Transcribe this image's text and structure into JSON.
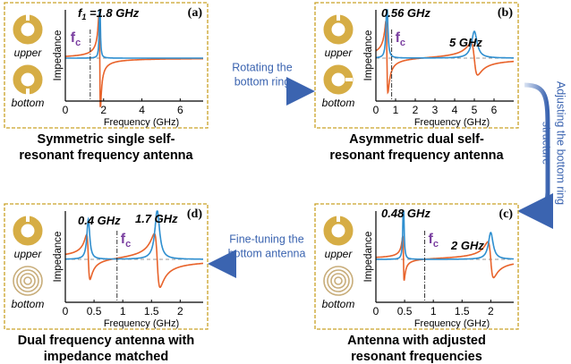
{
  "panels": [
    {
      "label": "(a)",
      "upper": "upper",
      "bottom": "bottom",
      "y_axis": "Impedance",
      "x_axis": "Frequency (GHz)",
      "xticks": [
        0,
        2,
        4,
        6
      ],
      "fc": {
        "main": "f",
        "sub": "c"
      },
      "annotations": [
        {
          "main": "f",
          "sub": "1",
          "rest": " =1.8 GHz"
        }
      ],
      "caption": [
        "Symmetric single self-",
        "resonant frequency antenna"
      ]
    },
    {
      "label": "(b)",
      "upper": "upper",
      "bottom": "bottom",
      "y_axis": "Impedance",
      "x_axis": "Frequency (GHz)",
      "xticks": [
        0,
        1,
        2,
        3,
        4,
        5,
        6
      ],
      "fc": {
        "main": "f",
        "sub": "c"
      },
      "annotations": [
        {
          "main": "0.56 GHz"
        },
        {
          "main": "5 GHz"
        }
      ],
      "caption": [
        "Asymmetric dual self-",
        "resonant frequency antenna"
      ]
    },
    {
      "label": "(c)",
      "upper": "upper",
      "bottom": "bottom",
      "y_axis": "Impedance",
      "x_axis": "Frequency (GHz)",
      "xticks": [
        0,
        0.5,
        1,
        1.5,
        2
      ],
      "fc": {
        "main": "f",
        "sub": "c"
      },
      "annotations": [
        {
          "main": "0.48 GHz"
        },
        {
          "main": "2 GHz"
        }
      ],
      "caption": [
        "Antenna with adjusted",
        "resonant frequencies"
      ]
    },
    {
      "label": "(d)",
      "upper": "upper",
      "bottom": "bottom",
      "y_axis": "Impedance",
      "x_axis": "Frequency (GHz)",
      "xticks": [
        0,
        0.5,
        1,
        1.5,
        2
      ],
      "fc": {
        "main": "f",
        "sub": "c"
      },
      "annotations": [
        {
          "main": "0.4 GHz"
        },
        {
          "main": "1.7 GHz"
        }
      ],
      "caption": [
        "Dual frequency antenna with",
        "impedance matched"
      ]
    }
  ],
  "arrows": {
    "rotate": [
      "Rotating the",
      "bottom ring"
    ],
    "adjust": [
      "Adjusting the bottom ring",
      "structure"
    ],
    "finetune": [
      "Fine-tuning the",
      "bottom antenna"
    ]
  }
}
